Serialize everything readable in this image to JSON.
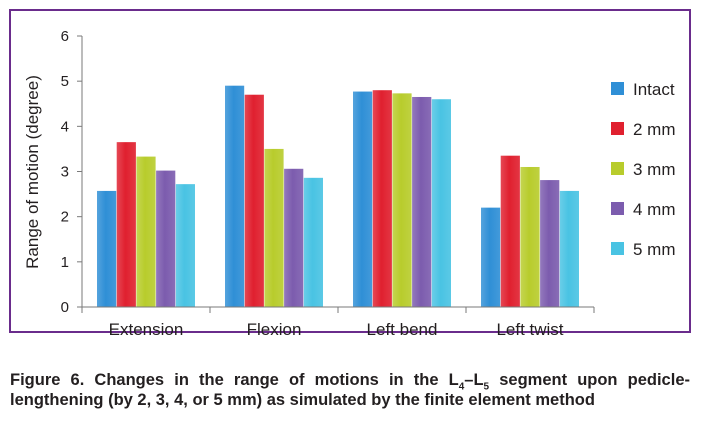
{
  "chart_data": {
    "type": "bar",
    "title": "",
    "xlabel": "",
    "ylabel": "Range of motion (degree)",
    "categories": [
      "Extension",
      "Flexion",
      "Left bend",
      "Left twist"
    ],
    "ylim": [
      0,
      6
    ],
    "yticks": [
      "0",
      "1",
      "2",
      "3",
      "4",
      "5",
      "6"
    ],
    "grid": false,
    "legend_position": "right",
    "series": [
      {
        "name": "Intact",
        "color": "#2f8fd6",
        "values": [
          2.57,
          4.9,
          4.77,
          2.2
        ]
      },
      {
        "name": "2 mm",
        "color": "#e0202f",
        "values": [
          3.65,
          4.7,
          4.8,
          3.35
        ]
      },
      {
        "name": "3 mm",
        "color": "#b8cc2c",
        "values": [
          3.33,
          3.5,
          4.73,
          3.1
        ]
      },
      {
        "name": "4 mm",
        "color": "#7c5cae",
        "values": [
          3.02,
          3.06,
          4.65,
          2.81
        ]
      },
      {
        "name": "5 mm",
        "color": "#49c3e3",
        "values": [
          2.72,
          2.86,
          4.6,
          2.57
        ]
      }
    ]
  },
  "caption": {
    "prefix": "Figure 6. Changes in the range of motions in the L",
    "sub1": "4",
    "dash": "–L",
    "sub2": "5",
    "suffix": " segment upon pedicle-lengthening (by 2, 3, 4, or 5 mm) as simulated by the finite element method"
  }
}
